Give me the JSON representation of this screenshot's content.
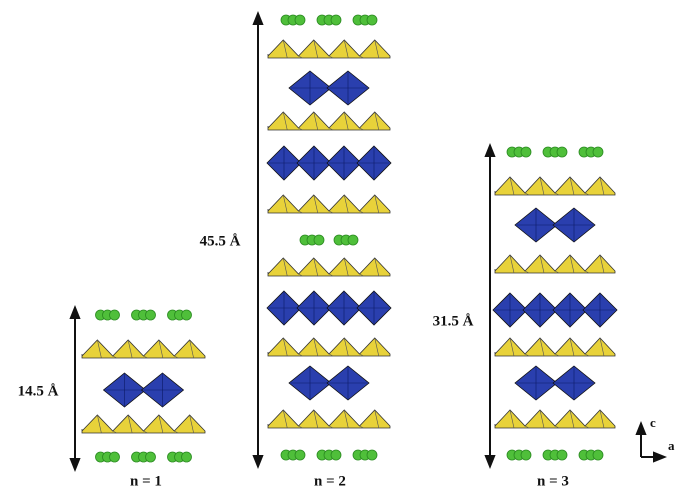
{
  "panels": [
    {
      "thickness": "14.5 Å",
      "label": "n = 1"
    },
    {
      "thickness": "45.5 Å",
      "label": "n = 2"
    },
    {
      "thickness": "31.5 Å",
      "label": "n = 3"
    }
  ],
  "axes": {
    "vertical": "c",
    "horizontal": "a"
  }
}
